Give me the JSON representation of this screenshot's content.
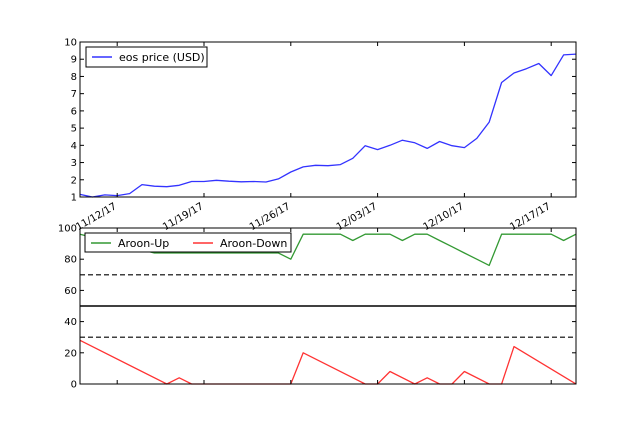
{
  "chart_data": [
    {
      "type": "line",
      "ylim": [
        1,
        10
      ],
      "yticks": [
        1,
        2,
        3,
        4,
        5,
        6,
        7,
        8,
        9,
        10
      ],
      "x_tick_labels": [
        "11/12/17",
        "11/19/17",
        "11/26/17",
        "12/03/17",
        "12/10/17",
        "12/17/17"
      ],
      "x_tick_dates": [
        "2017-11-12",
        "2017-11-19",
        "2017-11-26",
        "2017-12-03",
        "2017-12-10",
        "2017-12-17"
      ],
      "xlim": [
        "2017-11-09",
        "2017-12-19"
      ],
      "legend_placement": "top-left",
      "grid": false,
      "series": [
        {
          "name": "eos price (USD)",
          "color": "#3333ff",
          "x": [
            "2017-11-09",
            "2017-11-10",
            "2017-11-11",
            "2017-11-12",
            "2017-11-13",
            "2017-11-14",
            "2017-11-15",
            "2017-11-16",
            "2017-11-17",
            "2017-11-18",
            "2017-11-19",
            "2017-11-20",
            "2017-11-21",
            "2017-11-22",
            "2017-11-23",
            "2017-11-24",
            "2017-11-25",
            "2017-11-26",
            "2017-11-27",
            "2017-11-28",
            "2017-11-29",
            "2017-11-30",
            "2017-12-01",
            "2017-12-02",
            "2017-12-03",
            "2017-12-04",
            "2017-12-05",
            "2017-12-06",
            "2017-12-07",
            "2017-12-08",
            "2017-12-09",
            "2017-12-10",
            "2017-12-11",
            "2017-12-12",
            "2017-12-13",
            "2017-12-14",
            "2017-12-15",
            "2017-12-16",
            "2017-12-17",
            "2017-12-18",
            "2017-12-19"
          ],
          "values": [
            1.15,
            1.0,
            1.12,
            1.08,
            1.2,
            1.72,
            1.63,
            1.6,
            1.68,
            1.9,
            1.9,
            1.97,
            1.92,
            1.88,
            1.9,
            1.87,
            2.05,
            2.45,
            2.75,
            2.84,
            2.82,
            2.88,
            3.25,
            3.98,
            3.75,
            4.0,
            4.3,
            4.15,
            3.82,
            4.22,
            3.98,
            3.87,
            4.4,
            5.35,
            7.65,
            8.2,
            8.45,
            8.75,
            8.05,
            9.25,
            9.3
          ]
        }
      ]
    },
    {
      "type": "line",
      "ylim": [
        0,
        100
      ],
      "yticks": [
        0,
        20,
        40,
        60,
        80,
        100
      ],
      "xlim": [
        "2017-11-09",
        "2017-12-19"
      ],
      "legend_placement": "top-left",
      "reference_lines": [
        {
          "y": 70,
          "style": "dashed",
          "color": "#000000"
        },
        {
          "y": 50,
          "style": "solid",
          "color": "#000000"
        },
        {
          "y": 30,
          "style": "dashed",
          "color": "#000000"
        }
      ],
      "series": [
        {
          "name": "Aroon-Up",
          "color": "#339933",
          "x": [
            "2017-11-09",
            "2017-11-15",
            "2017-11-16",
            "2017-11-17",
            "2017-11-18",
            "2017-11-19",
            "2017-11-20",
            "2017-11-21",
            "2017-11-22",
            "2017-11-23",
            "2017-11-24",
            "2017-11-25",
            "2017-11-26",
            "2017-11-27",
            "2017-11-28",
            "2017-11-29",
            "2017-11-30",
            "2017-12-01",
            "2017-12-02",
            "2017-12-03",
            "2017-12-04",
            "2017-12-05",
            "2017-12-06",
            "2017-12-07",
            "2017-12-08",
            "2017-12-09",
            "2017-12-10",
            "2017-12-11",
            "2017-12-12",
            "2017-12-13",
            "2017-12-14",
            "2017-12-15",
            "2017-12-16",
            "2017-12-17",
            "2017-12-18",
            "2017-12-19"
          ],
          "values": [
            96,
            84,
            84,
            84,
            84,
            84,
            84,
            84,
            84,
            84,
            84,
            84,
            80,
            96,
            96,
            96,
            96,
            92,
            96,
            96,
            96,
            92,
            96,
            96,
            92,
            88,
            84,
            80,
            76,
            96,
            96,
            96,
            96,
            96,
            92,
            96
          ]
        },
        {
          "name": "Aroon-Down",
          "color": "#ff3333",
          "x": [
            "2017-11-09",
            "2017-11-16",
            "2017-11-17",
            "2017-11-18",
            "2017-11-26",
            "2017-11-27",
            "2017-12-02",
            "2017-12-03",
            "2017-12-04",
            "2017-12-06",
            "2017-12-07",
            "2017-12-08",
            "2017-12-09",
            "2017-12-10",
            "2017-12-12",
            "2017-12-13",
            "2017-12-14",
            "2017-12-19"
          ],
          "values": [
            28,
            0,
            4,
            0,
            0,
            20,
            0,
            0,
            8,
            0,
            4,
            0,
            0,
            8,
            0,
            0,
            24,
            0
          ]
        }
      ]
    }
  ],
  "colors": {
    "axes": "#000000",
    "background": "#ffffff"
  }
}
